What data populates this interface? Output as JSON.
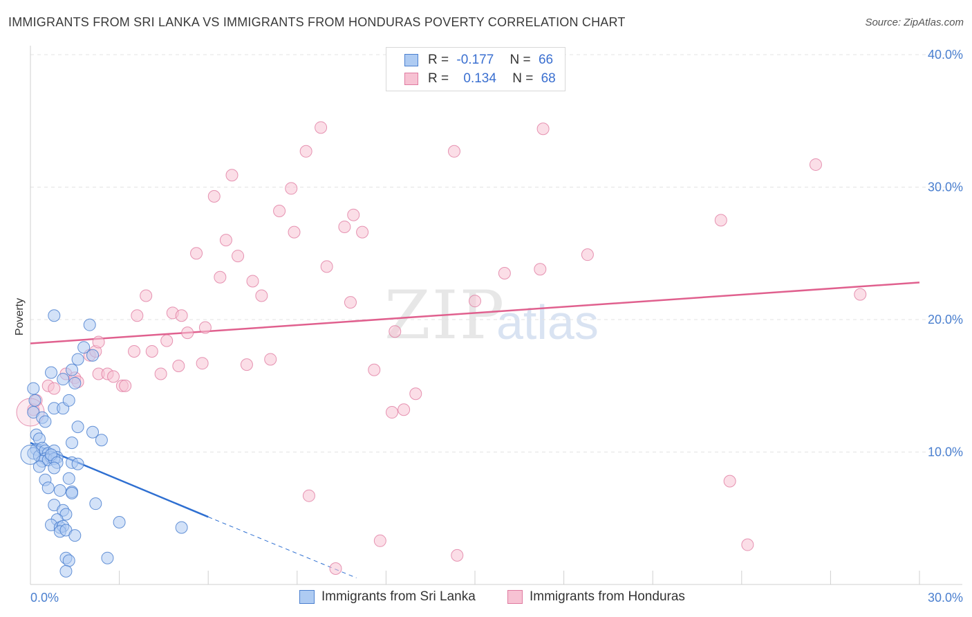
{
  "title": "IMMIGRANTS FROM SRI LANKA VS IMMIGRANTS FROM HONDURAS POVERTY CORRELATION CHART",
  "source": "Source: ZipAtlas.com",
  "watermark": {
    "zip": "ZIP",
    "atlas": "atlas"
  },
  "colors": {
    "blue": "#4a7fcf",
    "blue_fill": "#aecbf2",
    "blue_line": "#2e6fd1",
    "pink": "#e07aa0",
    "pink_fill": "#f7c2d3",
    "pink_line": "#e0608e",
    "grid": "#e3e3e3"
  },
  "legend": {
    "rows": [
      {
        "r_label": "R =",
        "r_value": "-0.177",
        "n_label": "N =",
        "n_value": "66"
      },
      {
        "r_label": "R =",
        "r_value": "0.134",
        "n_label": "N =",
        "n_value": "68"
      }
    ]
  },
  "bottom_legend": [
    "Immigrants from Sri Lanka",
    "Immigrants from Honduras"
  ],
  "chart_data": {
    "type": "scatter",
    "title": "IMMIGRANTS FROM SRI LANKA VS IMMIGRANTS FROM HONDURAS POVERTY CORRELATION CHART",
    "xlabel": "",
    "ylabel": "Poverty",
    "xlim": [
      0,
      30
    ],
    "ylim": [
      0,
      42
    ],
    "x_tick_labels": [
      "0.0%",
      "30.0%"
    ],
    "y_ticks": [
      10,
      20,
      30,
      40
    ],
    "y_tick_labels": [
      "10.0%",
      "20.0%",
      "30.0%",
      "40.0%"
    ],
    "grid": true,
    "series": [
      {
        "name": "Immigrants from Sri Lanka",
        "R": -0.177,
        "N": 66,
        "trend": {
          "x_start": 0,
          "y_start": 10.7,
          "x_solid_end": 6,
          "y_solid_end": 5.1,
          "x_dash_end": 11,
          "y_dash_end": 0.5
        },
        "points": [
          [
            0.1,
            14.8
          ],
          [
            0.15,
            13.9
          ],
          [
            0.1,
            13.0
          ],
          [
            0.2,
            11.3
          ],
          [
            0.3,
            11.0
          ],
          [
            0.2,
            10.2
          ],
          [
            0.1,
            9.9
          ],
          [
            0.3,
            9.7
          ],
          [
            0.4,
            10.3
          ],
          [
            0.5,
            10.1
          ],
          [
            0.6,
            9.9
          ],
          [
            0.5,
            9.5
          ],
          [
            0.4,
            9.3
          ],
          [
            0.7,
            9.6
          ],
          [
            0.8,
            10.1
          ],
          [
            0.6,
            9.4
          ],
          [
            0.9,
            9.6
          ],
          [
            0.8,
            9.5
          ],
          [
            0.7,
            9.8
          ],
          [
            0.9,
            9.2
          ],
          [
            0.3,
            8.9
          ],
          [
            0.8,
            8.8
          ],
          [
            1.4,
            9.2
          ],
          [
            1.6,
            9.1
          ],
          [
            0.5,
            7.9
          ],
          [
            1.3,
            8.0
          ],
          [
            0.6,
            7.3
          ],
          [
            1.0,
            7.1
          ],
          [
            1.4,
            7.0
          ],
          [
            1.4,
            6.9
          ],
          [
            1.6,
            11.9
          ],
          [
            1.4,
            10.7
          ],
          [
            0.4,
            12.6
          ],
          [
            0.5,
            12.3
          ],
          [
            0.8,
            13.3
          ],
          [
            1.1,
            13.3
          ],
          [
            1.3,
            13.9
          ],
          [
            2.1,
            11.5
          ],
          [
            2.4,
            10.9
          ],
          [
            0.7,
            16.0
          ],
          [
            1.1,
            15.5
          ],
          [
            1.4,
            16.2
          ],
          [
            1.5,
            15.2
          ],
          [
            1.6,
            17.0
          ],
          [
            1.8,
            17.9
          ],
          [
            2.1,
            17.3
          ],
          [
            2.0,
            19.6
          ],
          [
            0.8,
            20.3
          ],
          [
            0.8,
            6.0
          ],
          [
            1.1,
            5.6
          ],
          [
            1.2,
            5.3
          ],
          [
            0.9,
            4.9
          ],
          [
            0.7,
            4.5
          ],
          [
            1.0,
            4.3
          ],
          [
            1.1,
            4.4
          ],
          [
            1.0,
            4.0
          ],
          [
            1.2,
            4.1
          ],
          [
            1.5,
            3.7
          ],
          [
            2.2,
            6.1
          ],
          [
            3.0,
            4.7
          ],
          [
            5.1,
            4.3
          ],
          [
            1.2,
            2.0
          ],
          [
            1.3,
            1.8
          ],
          [
            2.6,
            2.0
          ],
          [
            1.2,
            1.0
          ],
          [
            0.0,
            9.8
          ]
        ]
      },
      {
        "name": "Immigrants from Honduras",
        "R": 0.134,
        "N": 68,
        "trend": {
          "x_start": 0,
          "y_start": 18.2,
          "x_end": 30,
          "y_end": 22.8
        },
        "points": [
          [
            0.1,
            13.2
          ],
          [
            0.2,
            13.9
          ],
          [
            0.6,
            15.0
          ],
          [
            0.8,
            14.8
          ],
          [
            1.2,
            15.9
          ],
          [
            1.5,
            15.6
          ],
          [
            1.6,
            15.3
          ],
          [
            2.0,
            17.3
          ],
          [
            2.2,
            17.6
          ],
          [
            2.3,
            18.3
          ],
          [
            2.3,
            15.9
          ],
          [
            2.6,
            15.9
          ],
          [
            2.8,
            15.7
          ],
          [
            3.1,
            15.0
          ],
          [
            3.2,
            15.0
          ],
          [
            3.5,
            17.6
          ],
          [
            3.6,
            20.3
          ],
          [
            3.9,
            21.8
          ],
          [
            4.1,
            17.6
          ],
          [
            4.4,
            15.9
          ],
          [
            4.6,
            18.4
          ],
          [
            4.8,
            20.5
          ],
          [
            5.0,
            16.5
          ],
          [
            5.1,
            20.3
          ],
          [
            5.3,
            19.0
          ],
          [
            5.6,
            25.0
          ],
          [
            5.8,
            16.7
          ],
          [
            5.9,
            19.4
          ],
          [
            6.2,
            29.3
          ],
          [
            6.4,
            23.2
          ],
          [
            6.6,
            26.0
          ],
          [
            6.8,
            30.9
          ],
          [
            7.0,
            24.8
          ],
          [
            7.3,
            16.6
          ],
          [
            7.5,
            22.9
          ],
          [
            7.8,
            21.8
          ],
          [
            8.1,
            17.0
          ],
          [
            8.4,
            28.2
          ],
          [
            8.8,
            29.9
          ],
          [
            8.9,
            26.6
          ],
          [
            9.3,
            32.7
          ],
          [
            9.4,
            6.7
          ],
          [
            9.8,
            34.5
          ],
          [
            10.0,
            24.0
          ],
          [
            10.3,
            1.2
          ],
          [
            10.6,
            27.0
          ],
          [
            10.8,
            21.3
          ],
          [
            10.9,
            27.9
          ],
          [
            11.2,
            26.6
          ],
          [
            11.6,
            16.2
          ],
          [
            11.8,
            3.3
          ],
          [
            12.2,
            13.0
          ],
          [
            12.3,
            19.1
          ],
          [
            12.6,
            13.2
          ],
          [
            13.0,
            14.4
          ],
          [
            14.3,
            32.7
          ],
          [
            14.4,
            2.2
          ],
          [
            15.0,
            21.4
          ],
          [
            16.0,
            23.5
          ],
          [
            17.2,
            23.8
          ],
          [
            17.3,
            34.4
          ],
          [
            18.8,
            24.9
          ],
          [
            23.3,
            27.5
          ],
          [
            23.6,
            7.8
          ],
          [
            24.2,
            3.0
          ],
          [
            26.5,
            31.7
          ],
          [
            28.0,
            21.9
          ],
          [
            0.0,
            13.0
          ]
        ]
      }
    ]
  }
}
